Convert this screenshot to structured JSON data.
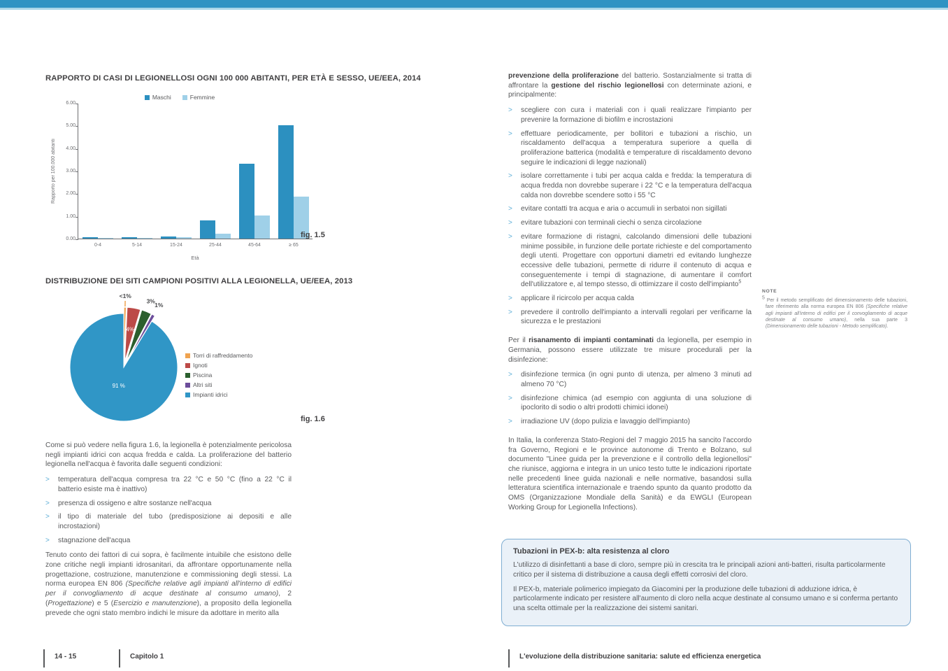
{
  "ui": {
    "bullet": ">"
  },
  "colors": {
    "top_bar": "#2E93C3",
    "top_bar_line": "#A9D6E8",
    "body_text": "#58595B",
    "heading_text": "#414042",
    "bullet_arrow": "#5FAFD7",
    "box_background": "#EAF1F8",
    "box_border": "#7FAED2"
  },
  "chart_data": [
    {
      "type": "bar",
      "title": "RAPPORTO DI CASI DI LEGIONELLOSI OGNI 100 000 ABITANTI, PER ETÀ E SESSO, UE/EEA, 2014",
      "fig_label": "fig. 1.5",
      "categories": [
        "0-4",
        "5-14",
        "15-24",
        "25-44",
        "45-64",
        "≥ 65"
      ],
      "series": [
        {
          "name": "Maschi",
          "color": "#2C90C0",
          "values": [
            0.05,
            0.05,
            0.1,
            0.8,
            3.3,
            5.0
          ]
        },
        {
          "name": "Femmine",
          "color": "#9FD0E8",
          "values": [
            0.02,
            0.02,
            0.07,
            0.22,
            1.02,
            1.87
          ]
        }
      ],
      "xlabel": "Età",
      "ylabel": "Rapporto per 100.000 abitanti",
      "ylim": [
        0,
        6
      ],
      "ytick_step": 1,
      "ytick_format": [
        "0.00",
        "1.00",
        "2.00",
        "3.00",
        "4.00",
        "5.00",
        "6.00"
      ],
      "grid": false,
      "legend_position": "top"
    },
    {
      "type": "pie",
      "title": "DISTRIBUZIONE DEI SITI CAMPIONI POSITIVI ALLA LEGIONELLA, UE/EEA, 2013",
      "fig_label": "fig. 1.6",
      "legend_position": "right",
      "slices": [
        {
          "label": "Torri di raffreddamento",
          "value": 0.7,
          "display": "<1%",
          "color": "#F0A350",
          "exploded": true,
          "label_inside": false,
          "leader": true
        },
        {
          "label": "Ignoti",
          "value": 4,
          "display": "4%",
          "color": "#BC4A47",
          "exploded": true,
          "label_inside": true,
          "leader": false
        },
        {
          "label": "Piscina",
          "value": 3,
          "display": "3%",
          "color": "#2B5F2E",
          "exploded": true,
          "label_inside": false,
          "leader": false
        },
        {
          "label": "Altri siti",
          "value": 1,
          "display": "1%",
          "color": "#6C4D9B",
          "exploded": true,
          "label_inside": false,
          "leader": false
        },
        {
          "label": "Impianti idrici",
          "value": 91.3,
          "display": "91 %",
          "color": "#3096C6",
          "exploded": false,
          "label_inside": true,
          "leader": false
        }
      ]
    }
  ],
  "left_column": {
    "para1": "Come si può vedere nella figura 1.6, la legionella è potenzialmente pericolosa negli impianti idrici con acqua fredda e calda. La proliferazione del batterio legionella nell'acqua è favorita dalle seguenti condizioni:",
    "bullets1": [
      "temperatura dell'acqua compresa tra 22 °C e 50 °C (fino a 22 °C il batterio esiste ma è inattivo)",
      "presenza di ossigeno e altre sostanze nell'acqua",
      "il tipo di materiale del tubo (predisposizione ai depositi e alle incrostazioni)",
      "stagnazione dell'acqua"
    ],
    "para2_runs": [
      {
        "t": "Tenuto conto dei fattori di cui sopra, è facilmente intuibile che esistono delle zone critiche negli impianti idrosanitari, da affrontare opportunamente nella progettazione, costruzione, manutenzione e commissioning degli stessi. La norma europea EN 806 "
      },
      {
        "t": "(Specifiche relative agli impianti all'interno di edifici per il convogliamento di acque destinate al consumo umano)",
        "i": true
      },
      {
        "t": ", 2 ("
      },
      {
        "t": "Progettazione",
        "i": true
      },
      {
        "t": ") e 5 ("
      },
      {
        "t": "Esercizio e manutenzione",
        "i": true
      },
      {
        "t": "), a proposito della legionella prevede che ogni stato membro indichi le misure da adottare in merito alla"
      }
    ]
  },
  "right_column": {
    "intro_runs": [
      {
        "t": "prevenzione della proliferazione",
        "b": true
      },
      {
        "t": " del batterio. Sostanzialmente si tratta di affrontare la "
      },
      {
        "t": "gestione del rischio legionellosi",
        "b": true
      },
      {
        "t": " con determinate azioni, e principalmente:"
      }
    ],
    "bullets1": [
      "scegliere con cura i materiali con i quali realizzare l'impianto per prevenire la formazione di biofilm e incrostazioni",
      "effettuare periodicamente, per bollitori e tubazioni a rischio, un riscaldamento dell'acqua a temperatura superiore a quella di proliferazione batterica (modalità e temperature di riscaldamento devono seguire le indicazioni di legge nazionali)",
      "isolare correttamente i tubi per acqua calda e fredda: la temperatura di acqua fredda non dovrebbe superare i 22 °C e la temperatura dell'acqua calda non dovrebbe scendere sotto i 55 °C",
      "evitare contatti tra acqua e aria o accumuli in serbatoi non sigillati",
      "evitare tubazioni con terminali ciechi o senza circolazione",
      [
        {
          "t": "evitare formazione di ristagni, calcolando dimensioni delle tubazioni minime possibile, in funzione delle portate richieste e del comportamento degli utenti. Progettare con opportuni diametri ed evitando lunghezze eccessive delle tubazioni, permette di ridurre il contenuto di acqua e conseguentemente i tempi di stagnazione, di aumentare il comfort dell'utilizzatore e, al tempo stesso, di ottimizzare il costo dell'impianto"
        },
        {
          "t": "5",
          "sup": true
        }
      ],
      "applicare il ricircolo per acqua calda",
      "prevedere il controllo dell'impianto a intervalli regolari per verificarne la sicurezza e le prestazioni"
    ],
    "risanamento_runs": [
      {
        "t": "Per il "
      },
      {
        "t": "risanamento di impianti contaminati",
        "b": true
      },
      {
        "t": " da legionella, per esempio in Germania, possono essere utilizzate tre misure procedurali per la disinfezione:"
      }
    ],
    "bullets2": [
      "disinfezione termica (in ogni punto di utenza, per almeno 3 minuti ad almeno 70 °C)",
      "disinfezione chimica (ad esempio con aggiunta di una soluzione di ipoclorito di sodio o altri prodotti chimici idonei)",
      "irradiazione UV (dopo pulizia e lavaggio dell'impianto)"
    ],
    "para_italia": "In Italia, la conferenza Stato-Regioni del 7 maggio 2015 ha sancito l'accordo fra Governo, Regioni e le province autonome di Trento e Bolzano, sul documento \"Linee guida per la prevenzione e il controllo della legionellosi\" che riunisce, aggiorna e integra in un unico testo tutte le indicazioni riportate nelle precedenti linee guida nazionali e nelle normative, basandosi sulla letteratura scientifica internazionale e traendo spunto da quanto prodotto da OMS (Organizzazione Mondiale della Sanità) e da EWGLI (European Working Group for Legionella Infections)."
  },
  "note": {
    "heading": "NOTE",
    "footnote_runs": [
      {
        "t": "5 ",
        "sup": true
      },
      {
        "t": "Per il metodo semplificato del dimensionamento delle tubazioni, fare riferimento alla norma europea EN 806 "
      },
      {
        "t": "(Specifiche relative agli impianti all'interno di edifici per il convogliamento di acque destinate al consumo umano)",
        "i": true
      },
      {
        "t": ", nella sua parte 3 "
      },
      {
        "t": "(Dimensionamento delle tubazioni - Metodo semplificato)",
        "i": true
      },
      {
        "t": "."
      }
    ]
  },
  "box": {
    "title": "Tubazioni in PEX-b: alta resistenza al cloro",
    "para1": "L'utilizzo di disinfettanti a base di cloro, sempre più in crescita tra le principali azioni anti-batteri, risulta particolarmente critico per il sistema di distribuzione a causa degli effetti corrosivi del cloro.",
    "para2": "Il PEX-b, materiale polimerico impiegato da Giacomini per la produzione delle tubazioni di adduzione idrica, è particolarmente indicato per resistere all'aumento di cloro nella acque destinate al consumo umano e si conferma pertanto una scelta ottimale per la realizzazione dei sistemi sanitari."
  },
  "footer": {
    "page_numbers": "14 - 15",
    "chapter": "Capitolo 1",
    "book_title": "L'evoluzione della distribuzione sanitaria: salute ed efficienza energetica"
  }
}
